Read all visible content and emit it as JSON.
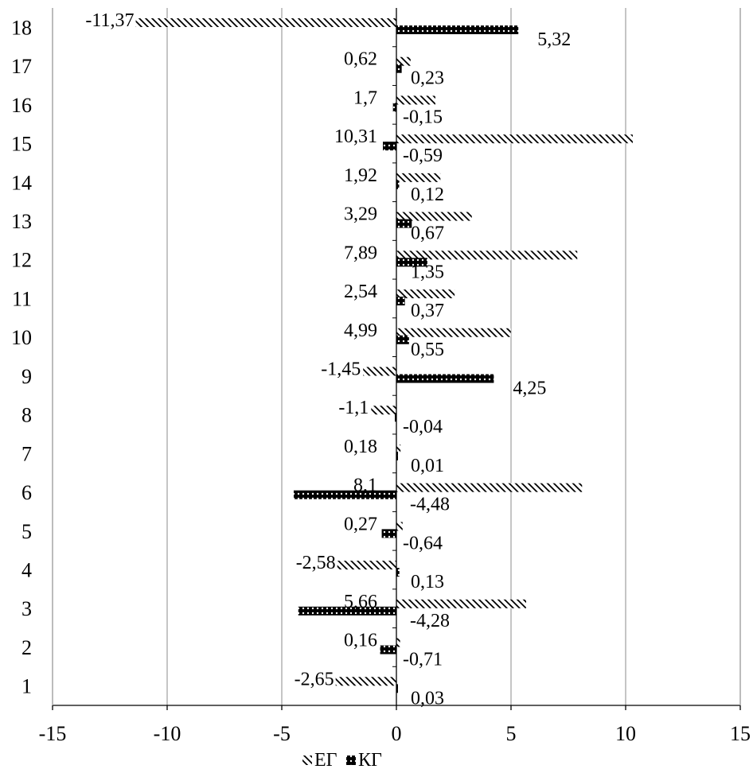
{
  "chart_data": {
    "type": "bar",
    "orientation": "horizontal",
    "categories": [
      "1",
      "2",
      "3",
      "4",
      "5",
      "6",
      "7",
      "8",
      "9",
      "10",
      "11",
      "12",
      "13",
      "14",
      "15",
      "16",
      "17",
      "18"
    ],
    "series": [
      {
        "name": "ЕГ",
        "values": [
          -2.65,
          0.16,
          5.66,
          -2.58,
          0.27,
          8.1,
          0.18,
          -1.1,
          -1.45,
          4.99,
          2.54,
          7.89,
          3.29,
          1.92,
          10.31,
          1.7,
          0.62,
          -11.37
        ],
        "labels": [
          "-2,65",
          "0,16",
          "5,66",
          "-2,58",
          "0,27",
          "8,1",
          "0,18",
          "-1,1",
          "-1,45",
          "4,99",
          "2,54",
          "7,89",
          "3,29",
          "1,92",
          "10,31",
          "1,7",
          "0,62",
          "-11,37"
        ]
      },
      {
        "name": "КГ",
        "values": [
          0.03,
          -0.71,
          -4.28,
          0.13,
          -0.64,
          -4.48,
          0.01,
          -0.04,
          4.25,
          0.55,
          0.37,
          1.35,
          0.67,
          0.12,
          -0.59,
          -0.15,
          0.23,
          5.32
        ],
        "labels": [
          "0,03",
          "-0,71",
          "-4,28",
          "0,13",
          "-0,64",
          "-4,48",
          "0,01",
          "-0,04",
          "4,25",
          "0,55",
          "0,37",
          "1,35",
          "0,67",
          "0,12",
          "-0,59",
          "-0,15",
          "0,23",
          "5,32"
        ]
      }
    ],
    "xlim": [
      -15,
      15
    ],
    "x_ticks": [
      -15,
      -10,
      -5,
      0,
      5,
      10,
      15
    ],
    "x_tick_labels": [
      "-15",
      "-10",
      "-5",
      "0",
      "5",
      "10",
      "15"
    ],
    "grid": "vertical",
    "legend": "bottom",
    "colors": {
      "grid": "#a6a6a6",
      "bar": "#000000"
    }
  }
}
